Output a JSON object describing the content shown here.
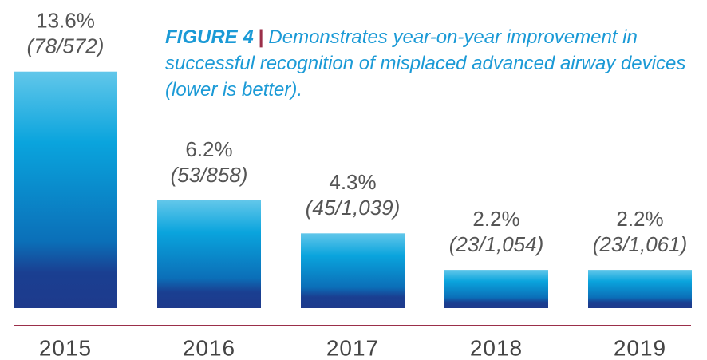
{
  "chart_data": {
    "type": "bar",
    "title": "FIGURE 4",
    "subtitle": "Demonstrates year-on-year improvement in successful recognition of misplaced advanced airway devices (lower is better).",
    "categories": [
      "2015",
      "2016",
      "2017",
      "2018",
      "2019"
    ],
    "values": [
      13.6,
      6.2,
      4.3,
      2.2,
      2.2
    ],
    "value_labels": [
      "13.6%",
      "6.2%",
      "4.3%",
      "2.2%",
      "2.2%"
    ],
    "annotations": [
      "(78/572)",
      "(53/858)",
      "(45/1,039)",
      "(23/1,054)",
      "(23/1,061)"
    ],
    "ylim": [
      0,
      14
    ],
    "color": "#0a9ad8"
  }
}
